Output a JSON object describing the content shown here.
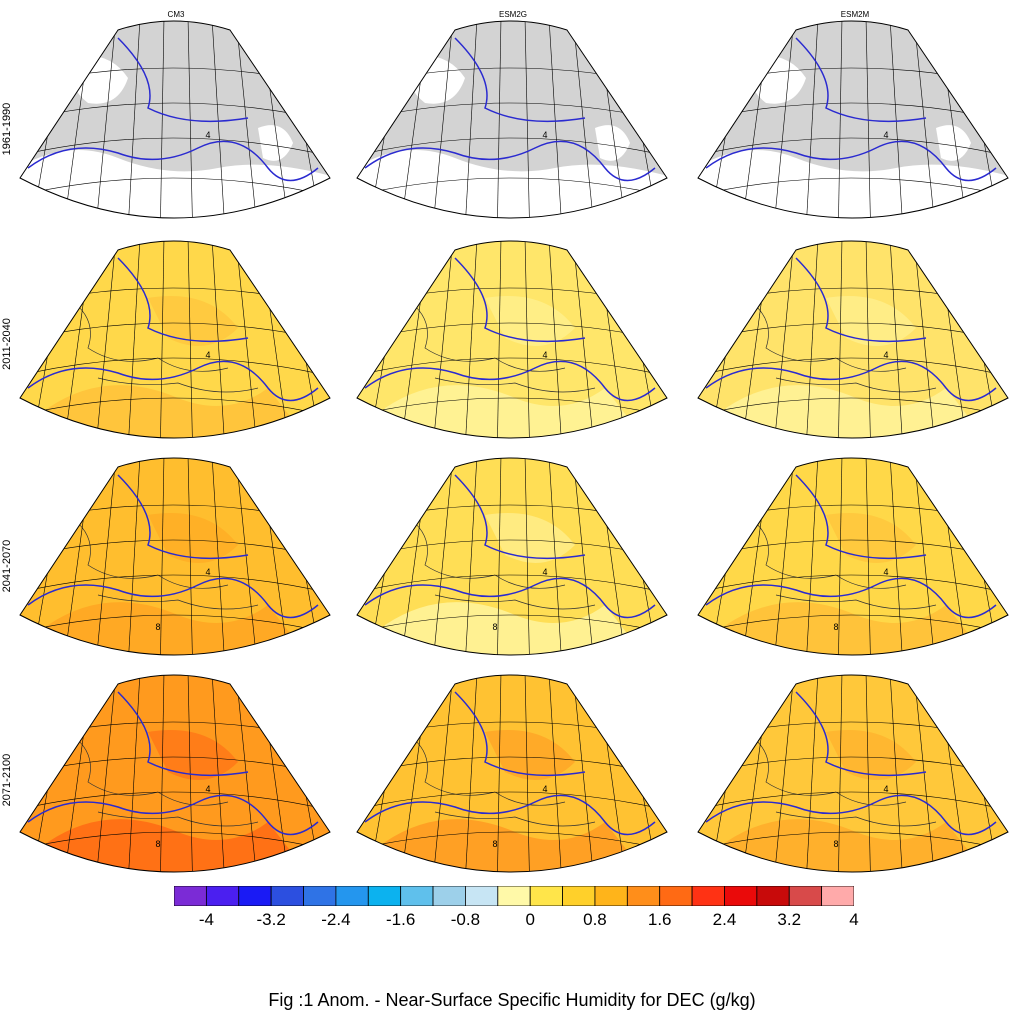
{
  "caption": "Fig :1  Anom.  - Near-Surface Specific Humidity for DEC (g/kg)",
  "columns": [
    "CM3",
    "ESM2G",
    "ESM2M"
  ],
  "rows": [
    "1961-1990",
    "2011-2040",
    "2041-2070",
    "2071-2100"
  ],
  "contour_label": "4",
  "contour_label_high": "8",
  "colors": {
    "land_gray": "#d3d3d3",
    "contour": "#2a2ad0",
    "coast": "#333333"
  },
  "colorbar": {
    "colors": [
      "#7b2bd6",
      "#4b1ff0",
      "#1a1af5",
      "#2c4fe0",
      "#2f73e6",
      "#2496ee",
      "#0cb2ef",
      "#5fc0ec",
      "#9dd0ea",
      "#c7e5f4",
      "#fff9a8",
      "#ffe54a",
      "#ffd02a",
      "#ffb41a",
      "#ff8e1a",
      "#ff6a14",
      "#ff3214",
      "#ea0a0a",
      "#c80a0a",
      "#d84a4a",
      "#ffaaaa"
    ],
    "tick_labels": [
      "-4",
      "-3.2",
      "-2.4",
      "-1.6",
      "-0.8",
      "0",
      "0.8",
      "1.6",
      "2.4",
      "3.2",
      "4"
    ]
  },
  "panel_fills": [
    [
      "#ffffff",
      "#ffffff",
      "#ffffff"
    ],
    [
      "#ffd84a",
      "#ffe66a",
      "#ffe36a"
    ],
    [
      "#ffbe2e",
      "#ffde55",
      "#ffd848"
    ],
    [
      "#ff9a1e",
      "#ffc232",
      "#ffc83a"
    ]
  ],
  "panel_blobs": [
    [
      null,
      null,
      null
    ],
    [
      "#ffc23a",
      "#fff39a",
      "#fff39a"
    ],
    [
      "#ffa622",
      "#fff49e",
      "#ffbf38"
    ],
    [
      "#ff6a14",
      "#ff9a22",
      "#ffac2a"
    ]
  ]
}
